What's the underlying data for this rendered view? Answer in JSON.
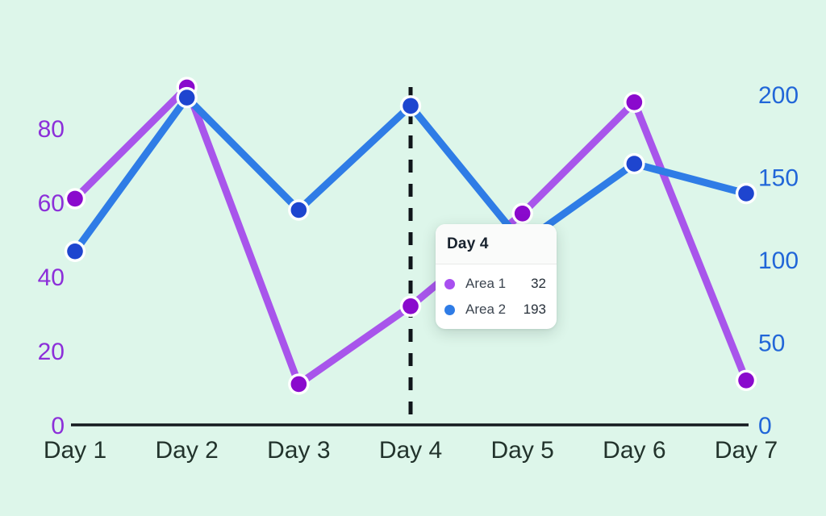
{
  "chart_data": {
    "type": "line",
    "title": "",
    "categories": [
      "Day 1",
      "Day 2",
      "Day 3",
      "Day 4",
      "Day 5",
      "Day 6",
      "Day 7"
    ],
    "series": [
      {
        "name": "Area 1",
        "axis": "left",
        "line_color": "#a855eb",
        "dot_color": "#8a0acd",
        "values": [
          61,
          91,
          11,
          32,
          57,
          87,
          12
        ]
      },
      {
        "name": "Area 2",
        "axis": "right",
        "line_color": "#2f7ce6",
        "dot_color": "#1e45cf",
        "values": [
          105,
          198,
          130,
          193,
          110,
          158,
          140
        ]
      }
    ],
    "left_axis": {
      "ticks": [
        0,
        20,
        40,
        60,
        80
      ],
      "range": [
        0,
        90
      ],
      "color": "#8c2fd9"
    },
    "right_axis": {
      "ticks": [
        0,
        50,
        100,
        150,
        200
      ],
      "range": [
        0,
        200
      ],
      "color": "#2166d8"
    },
    "x_label_color": "#22332c",
    "axis_line_color": "#141a1f",
    "grid": false,
    "legend_position": "none",
    "highlight": {
      "category": "Day 4",
      "x_index": 3,
      "style": "dashed-vertical-line",
      "color": "#10151a"
    }
  },
  "tooltip": {
    "title": "Day 4",
    "rows": [
      {
        "label": "Area 1",
        "value": "32",
        "color": "#a84ff0"
      },
      {
        "label": "Area 2",
        "value": "193",
        "color": "#2f7ce6"
      }
    ]
  },
  "colors": {
    "background": "#ddf6ea",
    "tooltip_background": "#ffffff"
  }
}
